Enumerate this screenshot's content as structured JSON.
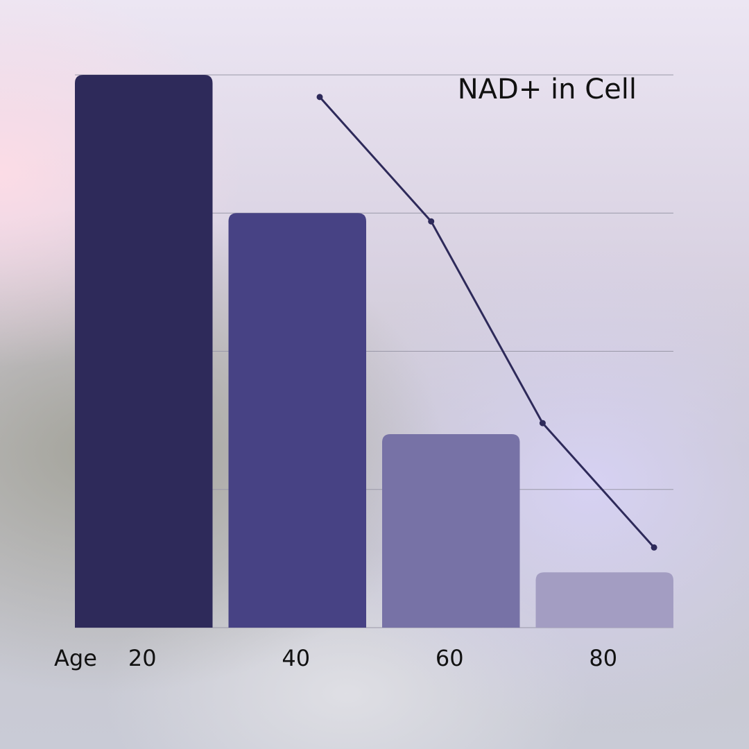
{
  "chart_data": {
    "type": "bar",
    "title": "NAD+ in Cell",
    "x_label": "Age",
    "categories": [
      "20",
      "40",
      "60",
      "80"
    ],
    "series": [
      {
        "type": "bar",
        "colors": [
          "#2e2a5a",
          "#474284",
          "#7772a6",
          "#a39dc2"
        ],
        "values": [
          100,
          75,
          35,
          10
        ]
      },
      {
        "type": "line",
        "color": "#2e2a5a",
        "values": [
          96,
          73.5,
          37,
          14.5
        ]
      }
    ],
    "ylim": [
      0,
      100
    ],
    "yticks": [
      0,
      25,
      50,
      75,
      100
    ],
    "ytick_labels": false,
    "grid": true
  }
}
